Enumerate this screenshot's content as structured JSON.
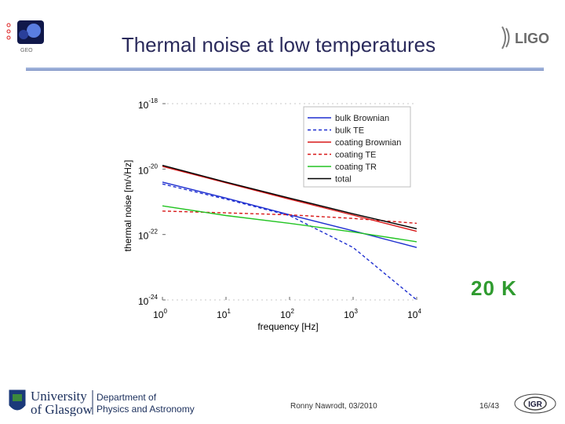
{
  "slide": {
    "title": "Thermal noise at low temperatures",
    "temperature_label": "20 K",
    "author": "Ronny Nawrodt, 03/2010",
    "page": "16/43"
  },
  "logos": {
    "geo": "GEO",
    "ligo": "LIGO",
    "university_line1": "University",
    "university_line2": "of Glasgow",
    "department_line1": "Department of",
    "department_line2": "Physics and Astronomy",
    "igr": "IGR"
  },
  "colors": {
    "title": "#2b2b5c",
    "bulk_brownian": "#1f2fd0",
    "bulk_te": "#1f2fd0",
    "coating_brownian": "#d81818",
    "coating_te": "#d81818",
    "coating_tr": "#22c422",
    "total": "#000000",
    "k_label": "#2f9b2f"
  },
  "chart_data": {
    "type": "line",
    "scale": "log-log",
    "xlabel": "frequency [Hz]",
    "ylabel": "thermal noise [m/√Hz]",
    "xlim": [
      1,
      10000
    ],
    "ylim": [
      1e-24,
      1e-18
    ],
    "x_ticks": [
      {
        "base": "10",
        "exp": "0",
        "value": 1
      },
      {
        "base": "10",
        "exp": "1",
        "value": 10
      },
      {
        "base": "10",
        "exp": "2",
        "value": 100
      },
      {
        "base": "10",
        "exp": "3",
        "value": 1000
      },
      {
        "base": "10",
        "exp": "4",
        "value": 10000
      }
    ],
    "y_ticks": [
      {
        "base": "10",
        "exp": "-18",
        "value": 1e-18
      },
      {
        "base": "10",
        "exp": "-20",
        "value": 1e-20
      },
      {
        "base": "10",
        "exp": "-22",
        "value": 1e-22
      },
      {
        "base": "10",
        "exp": "-24",
        "value": 1e-24
      }
    ],
    "legend_position": "top-right",
    "series": [
      {
        "name": "bulk Brownian",
        "style": "solid",
        "color": "#1f2fd0",
        "points": [
          [
            1,
            4e-21
          ],
          [
            10,
            1.3e-21
          ],
          [
            100,
            4e-22
          ],
          [
            1000,
            1.3e-22
          ],
          [
            10000,
            4e-23
          ]
        ]
      },
      {
        "name": "bulk TE",
        "style": "dashed",
        "color": "#1f2fd0",
        "points": [
          [
            1,
            3.5e-21
          ],
          [
            10,
            1.2e-21
          ],
          [
            100,
            3.8e-22
          ],
          [
            1000,
            4e-23
          ],
          [
            10000,
            1e-24
          ]
        ]
      },
      {
        "name": "coating Brownian",
        "style": "solid",
        "color": "#d81818",
        "points": [
          [
            1,
            1.2e-20
          ],
          [
            10,
            3.8e-21
          ],
          [
            100,
            1.2e-21
          ],
          [
            1000,
            3.9e-22
          ],
          [
            10000,
            1.25e-22
          ]
        ]
      },
      {
        "name": "coating TE",
        "style": "dashed",
        "color": "#d81818",
        "points": [
          [
            1,
            5.2e-22
          ],
          [
            10,
            4.6e-22
          ],
          [
            100,
            4e-22
          ],
          [
            1000,
            3.1e-22
          ],
          [
            10000,
            2.2e-22
          ]
        ]
      },
      {
        "name": "coating TR",
        "style": "solid",
        "color": "#22c422",
        "points": [
          [
            1,
            7.5e-22
          ],
          [
            10,
            3.8e-22
          ],
          [
            100,
            2.2e-22
          ],
          [
            1000,
            1.2e-22
          ],
          [
            10000,
            6e-23
          ]
        ]
      },
      {
        "name": "total",
        "style": "solid",
        "color": "#000000",
        "points": [
          [
            1,
            1.3e-20
          ],
          [
            10,
            4e-21
          ],
          [
            100,
            1.3e-21
          ],
          [
            1000,
            4.3e-22
          ],
          [
            10000,
            1.5e-22
          ]
        ]
      }
    ]
  }
}
